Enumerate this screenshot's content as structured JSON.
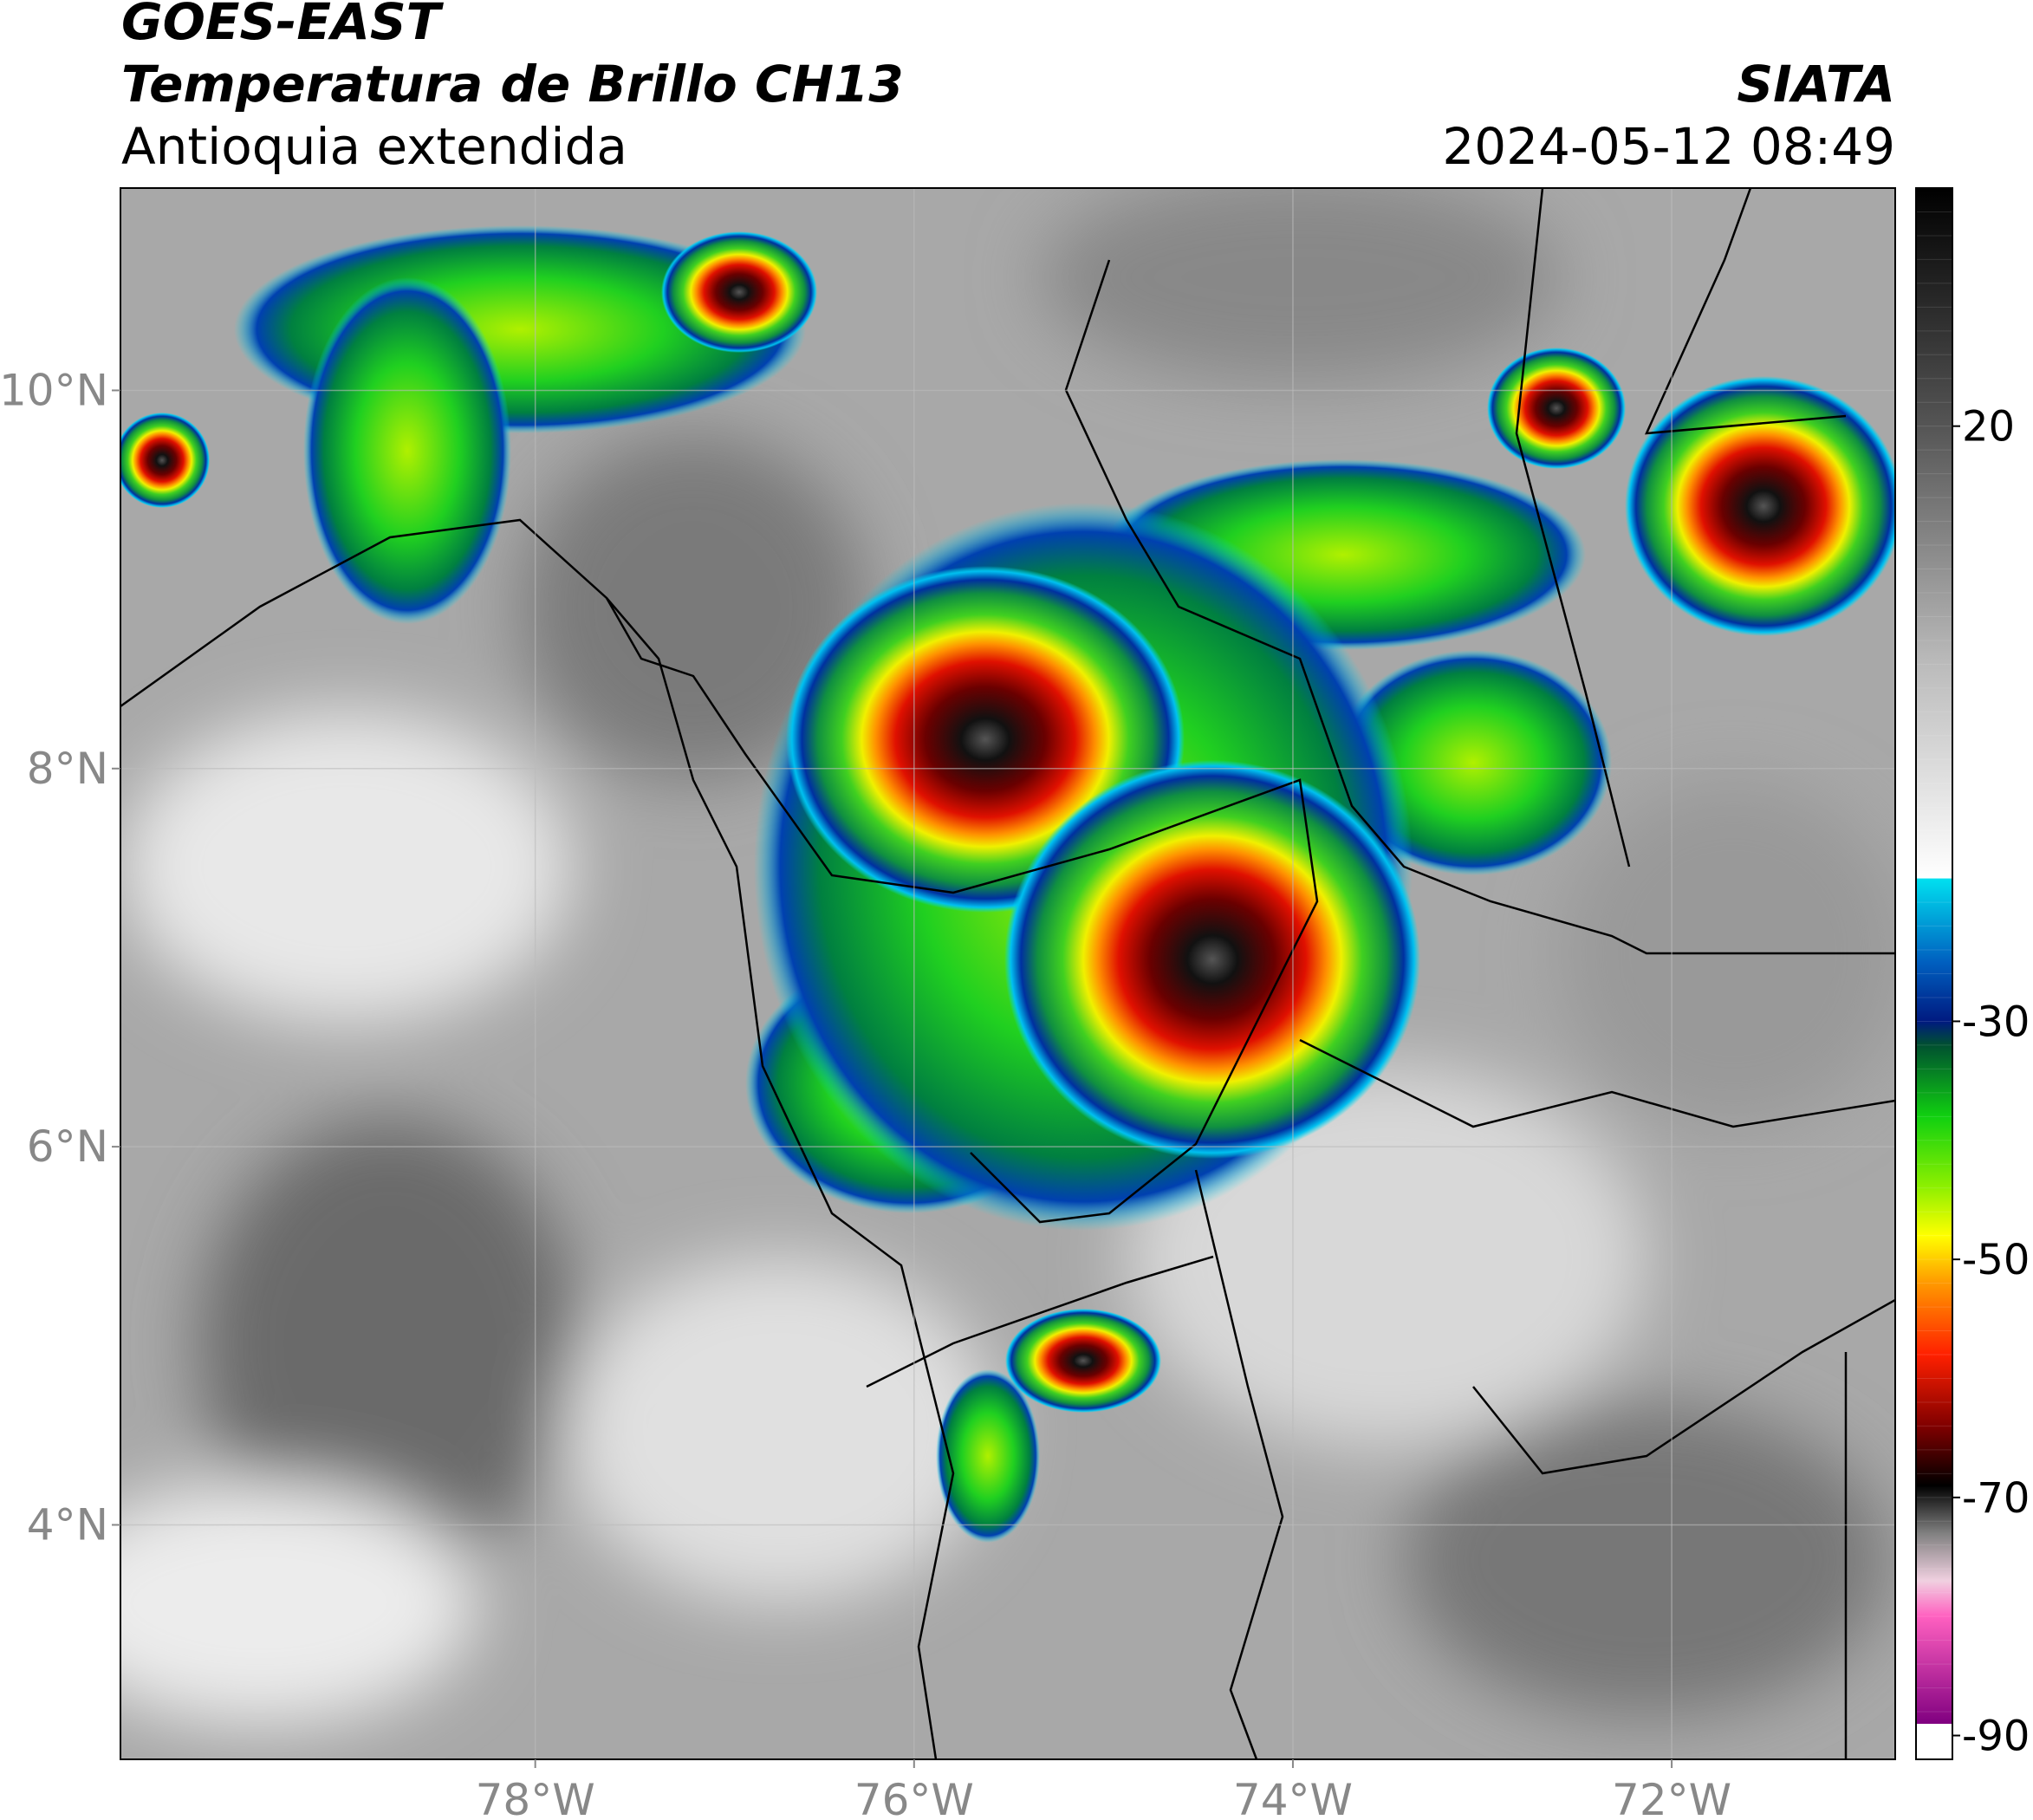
{
  "header": {
    "title": "GOES-EAST",
    "subtitle": "Temperatura de Brillo CH13",
    "region": "Antioquia extendida",
    "source": "SIATA",
    "datetime": "2024-05-12 08:49"
  },
  "map": {
    "xlim": [
      -80.19,
      -70.82
    ],
    "ylim": [
      2.76,
      11.07
    ],
    "xticks": [
      {
        "value": -78,
        "label": "78°W"
      },
      {
        "value": -76,
        "label": "76°W"
      },
      {
        "value": -74,
        "label": "74°W"
      },
      {
        "value": -72,
        "label": "72°W"
      }
    ],
    "yticks": [
      {
        "value": 4,
        "label": "4°N"
      },
      {
        "value": 6,
        "label": "6°N"
      },
      {
        "value": 8,
        "label": "8°N"
      },
      {
        "value": 10,
        "label": "10°N"
      }
    ],
    "grid": true
  },
  "colorbar": {
    "lim": [
      -92,
      40
    ],
    "ticks": [
      20,
      -30,
      -50,
      -70,
      -90
    ],
    "colormap": [
      {
        "value": 40,
        "color": "#000000"
      },
      {
        "value": 20,
        "color": "#555555"
      },
      {
        "value": 0,
        "color": "#bbbbbb"
      },
      {
        "value": -18,
        "color": "#ffffff"
      },
      {
        "value": -18.01,
        "color": "#00e0f0"
      },
      {
        "value": -25,
        "color": "#0060c0"
      },
      {
        "value": -30,
        "color": "#001a80"
      },
      {
        "value": -32,
        "color": "#005030"
      },
      {
        "value": -38,
        "color": "#10d010"
      },
      {
        "value": -44,
        "color": "#90f000"
      },
      {
        "value": -48,
        "color": "#ffff00"
      },
      {
        "value": -52,
        "color": "#ff9900"
      },
      {
        "value": -58,
        "color": "#ff2000"
      },
      {
        "value": -64,
        "color": "#800000"
      },
      {
        "value": -69,
        "color": "#000000"
      },
      {
        "value": -73,
        "color": "#808080"
      },
      {
        "value": -77,
        "color": "#f0d0e0"
      },
      {
        "value": -80,
        "color": "#ff60c0"
      },
      {
        "value": -89,
        "color": "#800080"
      },
      {
        "value": -89.01,
        "color": "#ffffff"
      },
      {
        "value": -92,
        "color": "#ffffff"
      }
    ]
  }
}
